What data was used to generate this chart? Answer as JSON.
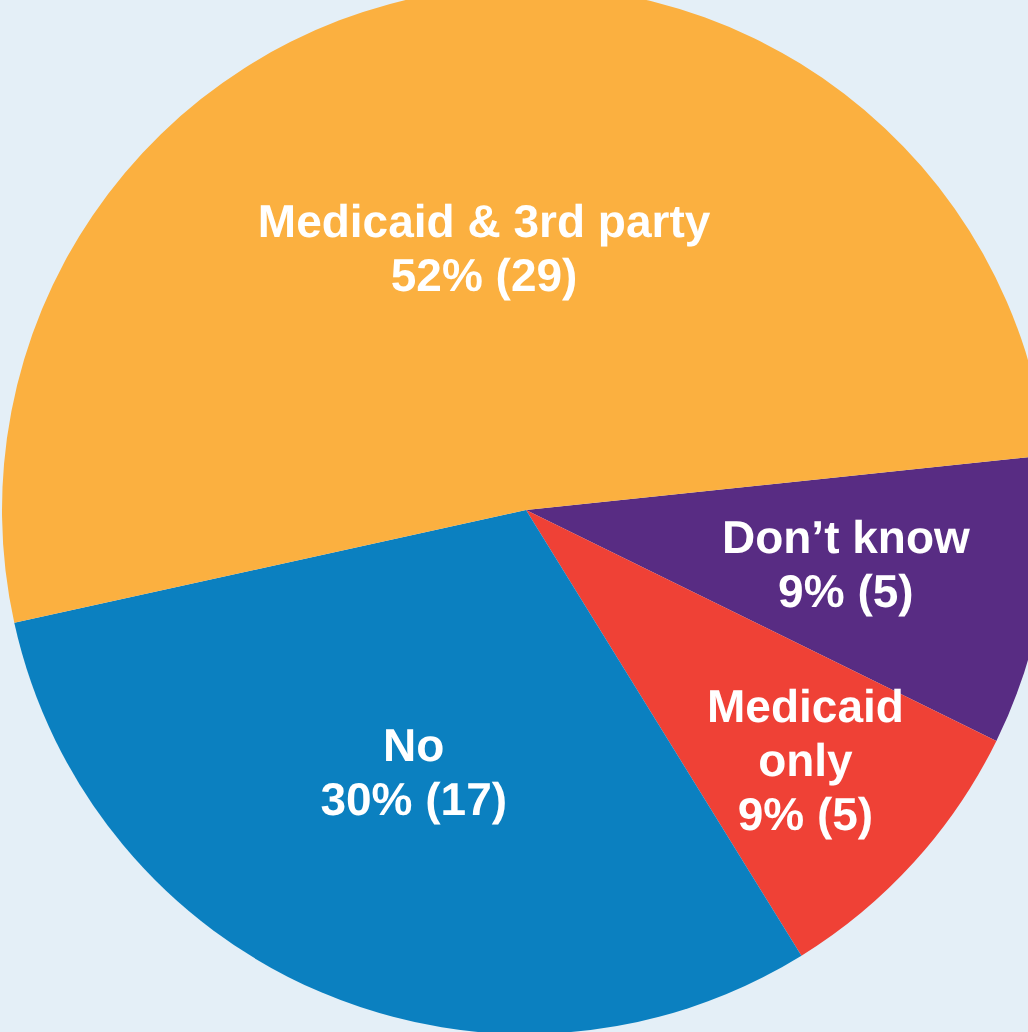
{
  "chart_data": {
    "type": "pie",
    "categories": [
      "Don’t know",
      "Medicaid only",
      "No",
      "Medicaid & 3rd party"
    ],
    "values": [
      5,
      5,
      17,
      29
    ],
    "colors": [
      "#582c83",
      "#ef4136",
      "#0b80c0",
      "#fbb040"
    ],
    "value_labels": [
      "9% (5)",
      "9% (5)",
      "30% (17)",
      "52% (29)"
    ],
    "legend": false
  }
}
